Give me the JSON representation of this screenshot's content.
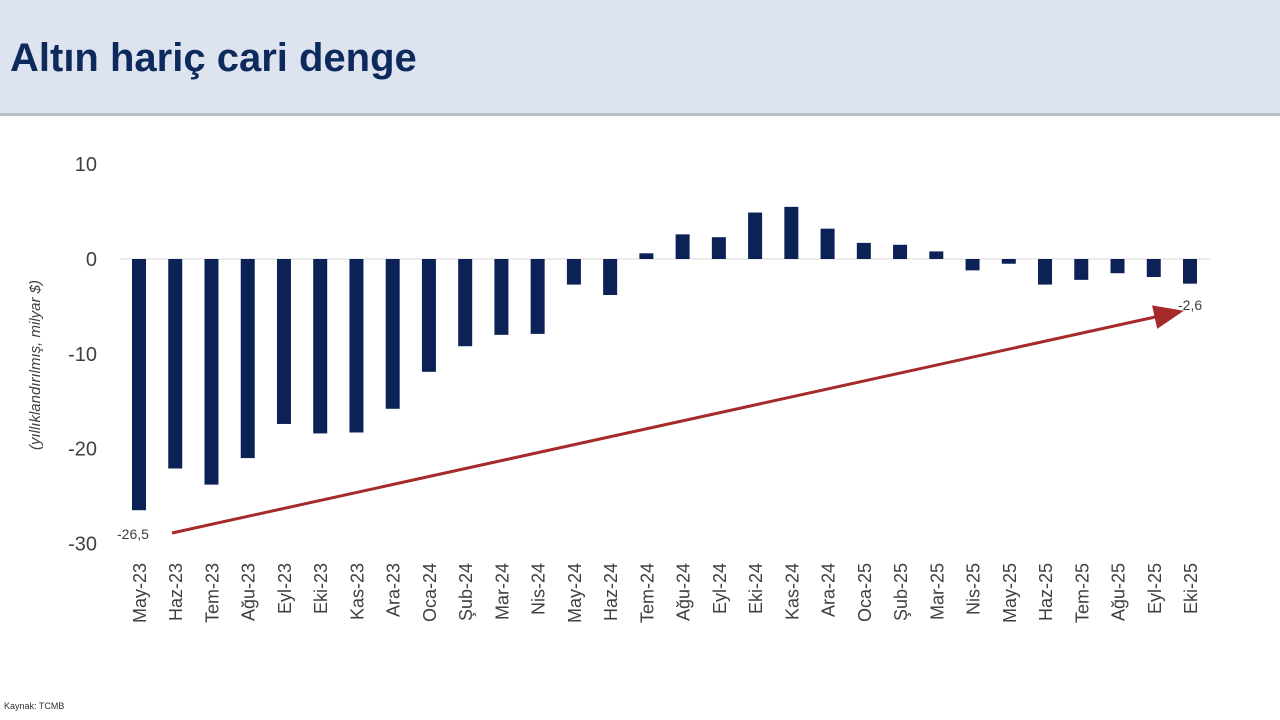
{
  "header": {
    "title": "Altın hariç cari denge"
  },
  "footer": {
    "source": "Kaynak: TCMB"
  },
  "colors": {
    "bar": "#0c2257",
    "arrow": "#a52a2a",
    "header_bg": "#dde4f0"
  },
  "chart_data": {
    "type": "bar",
    "title": "Altın hariç cari denge",
    "ylabel": "(yıllıklandırılmış, milyar $)",
    "ylim": [
      -30,
      10
    ],
    "yticks": [
      10,
      0,
      -10,
      -20,
      -30
    ],
    "grid": false,
    "categories": [
      "May-23",
      "Haz-23",
      "Tem-23",
      "Ağu-23",
      "Eyl-23",
      "Eki-23",
      "Kas-23",
      "Ara-23",
      "Oca-24",
      "Şub-24",
      "Mar-24",
      "Nis-24",
      "May-24",
      "Haz-24",
      "Tem-24",
      "Ağu-24",
      "Eyl-24",
      "Eki-24",
      "Kas-24",
      "Ara-24",
      "Oca-25",
      "Şub-25",
      "Mar-25",
      "Nis-25",
      "May-25",
      "Haz-25",
      "Tem-25",
      "Ağu-25",
      "Eyl-25",
      "Eki-25"
    ],
    "values": [
      -26.5,
      -22.1,
      -23.8,
      -21.0,
      -17.4,
      -18.4,
      -18.3,
      -15.8,
      -11.9,
      -9.2,
      -8.0,
      -7.9,
      -2.7,
      -3.8,
      0.6,
      2.6,
      2.3,
      4.9,
      5.5,
      3.2,
      1.7,
      1.5,
      0.8,
      -1.2,
      -0.5,
      -2.7,
      -2.2,
      -1.5,
      -1.9,
      -2.6
    ],
    "annotations": [
      {
        "category": "May-23",
        "text": "-26,5"
      },
      {
        "category": "Eki-25",
        "text": "-2,6"
      }
    ],
    "trend_arrow": {
      "from": "May-23",
      "to": "Eki-25"
    }
  }
}
